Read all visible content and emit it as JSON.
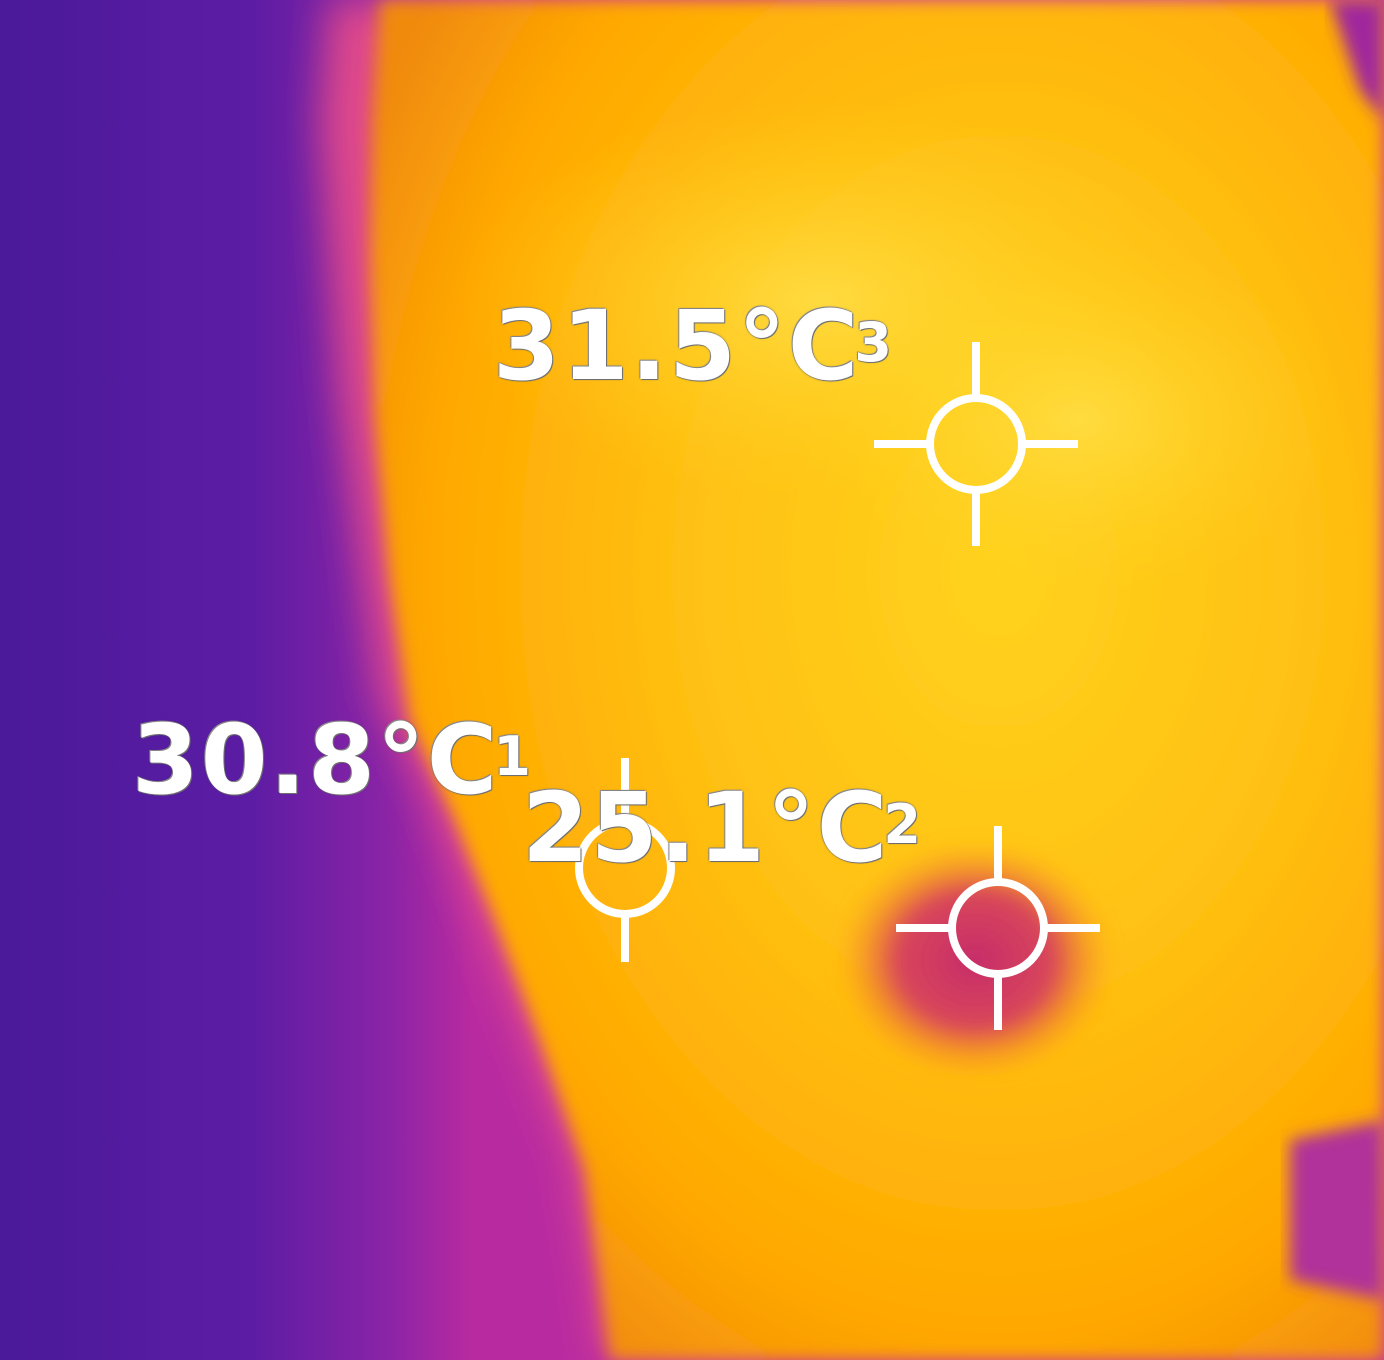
{
  "image": {
    "kind": "thermal-camera-face",
    "palette": [
      "#4a1a9a",
      "#a0289c",
      "#d2329a",
      "#ffa800",
      "#ffd21e",
      "#c93a6a"
    ]
  },
  "spots": [
    {
      "index": "3",
      "temperature": "31.5°C",
      "icon": "crosshair-icon"
    },
    {
      "index": "1",
      "temperature": "30.8°C",
      "icon": "crosshair-icon"
    },
    {
      "index": "2",
      "temperature": "25.1°C",
      "icon": "crosshair-icon"
    }
  ]
}
